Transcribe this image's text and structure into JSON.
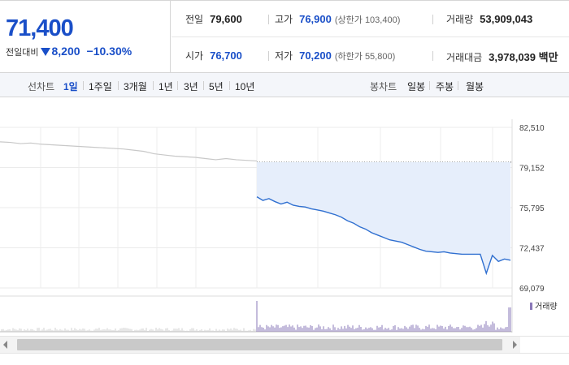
{
  "summary": {
    "current_price": "71,400",
    "change_label": "전일대비",
    "change_icon": "down-triangle-icon",
    "change_value": "8,200",
    "change_percent": "−10.30%",
    "prev_close_label": "전일",
    "prev_close": "79,600",
    "open_label": "시가",
    "open": "76,700",
    "high_label": "고가",
    "high": "76,900",
    "upper_limit": "(상한가 103,400)",
    "low_label": "저가",
    "low": "70,200",
    "lower_limit": "(하한가 55,800)",
    "volume_label": "거래량",
    "volume": "53,909,043",
    "turnover_label": "거래대금",
    "turnover": "3,978,039 백만"
  },
  "tabs": {
    "line_chart_label": "선차트",
    "line_periods": [
      "1일",
      "1주일",
      "3개월",
      "1년",
      "3년",
      "5년",
      "10년"
    ],
    "active_period": "1일",
    "candle_chart_label": "봉차트",
    "candle_periods": [
      "일봉",
      "주봉",
      "월봉"
    ]
  },
  "chart_data": {
    "type": "line",
    "y_ticks": [
      "82,510",
      "79,152",
      "75,795",
      "72,437",
      "69,079"
    ],
    "y_range": [
      69079,
      82510
    ],
    "prev_close": 79600,
    "prev_close_series": [
      81300,
      81250,
      81150,
      81200,
      81100,
      81050,
      81000,
      80950,
      80900,
      80850,
      80800,
      80750,
      80700,
      80600,
      80500,
      80300,
      80200,
      80100,
      80050,
      80000,
      79900,
      79800,
      79900,
      79800,
      79750,
      79700
    ],
    "today_series": [
      76700,
      76400,
      76550,
      76300,
      76100,
      76250,
      76000,
      75900,
      75850,
      75700,
      75600,
      75500,
      75350,
      75200,
      75000,
      74700,
      74500,
      74200,
      74000,
      73700,
      73500,
      73300,
      73100,
      73000,
      72900,
      72700,
      72500,
      72300,
      72150,
      72100,
      72050,
      72100,
      72000,
      71950,
      71900,
      71900,
      71900,
      71900,
      70300,
      71800,
      71300,
      71500,
      71400
    ],
    "volume_legend": "거래량",
    "colors": {
      "today_line": "#2f6fd0",
      "today_fill": "#e6eefb",
      "prev_line": "#c8c8c8",
      "volume_bar": "#8a78b8",
      "volume_bar_prev": "#cfcfcf"
    }
  }
}
